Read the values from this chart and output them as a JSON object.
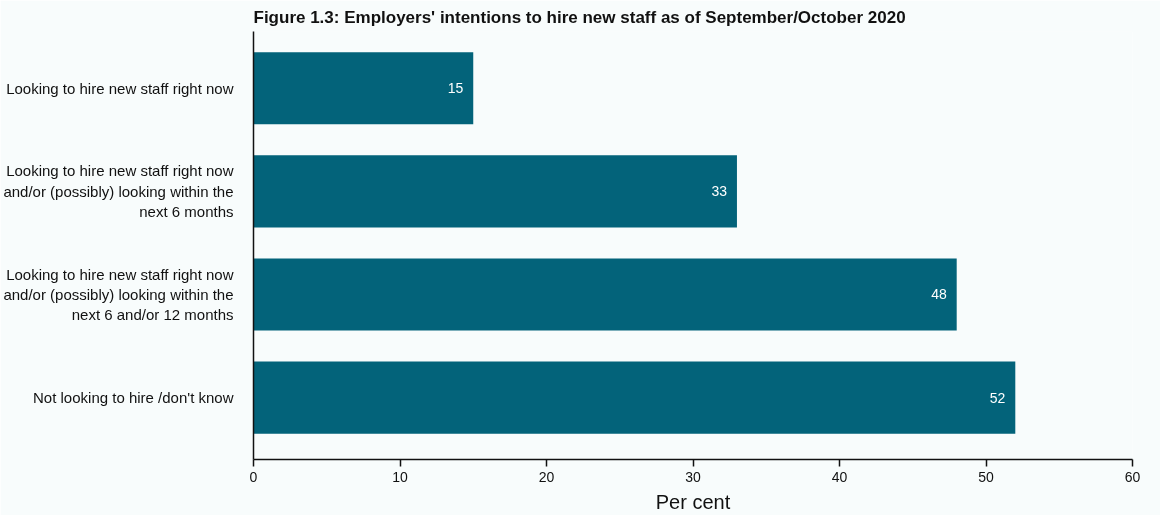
{
  "chart_data": {
    "type": "bar",
    "orientation": "horizontal",
    "title": "Figure 1.3: Employers' intentions to hire new staff as of September/October 2020",
    "xlabel": "Per cent",
    "categories": [
      "Looking to hire new staff right now",
      "Looking to hire new staff right now and/or (possibly) looking within the next 6 months",
      "Looking to hire new staff right now and/or (possibly) looking within the next 6 and/or 12 months",
      "Not looking to hire /don't know"
    ],
    "values": [
      15,
      33,
      48,
      52
    ],
    "color": "#03637a",
    "data_labels": true,
    "xlim": [
      0,
      60
    ],
    "xticks": [
      0,
      10,
      20,
      30,
      40,
      50,
      60
    ]
  }
}
